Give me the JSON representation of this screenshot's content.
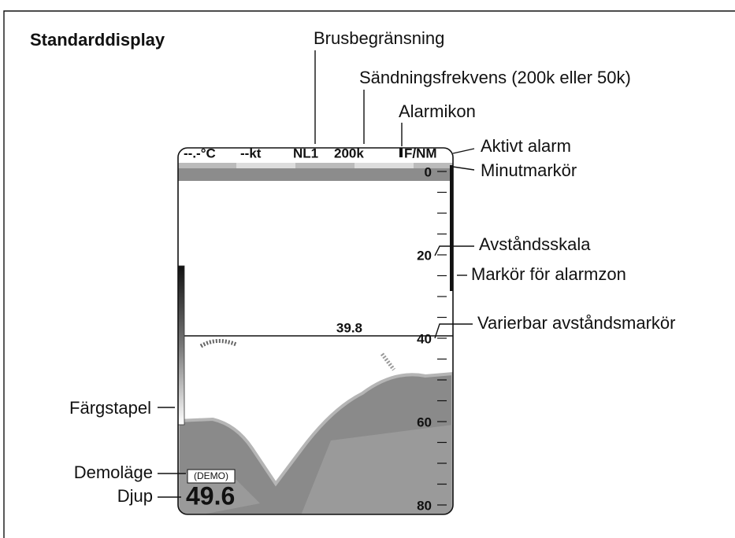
{
  "title": "Standarddisplay",
  "callouts": {
    "noise": "Brusbegränsning",
    "frequency": "Sändningsfrekvens (200k eller 50k)",
    "alarm_icon": "Alarmikon",
    "active_alarm": "Aktivt alarm",
    "minute_marker": "Minutmarkör",
    "range_scale": "Avståndsskala",
    "alarm_zone": "Markör för alarmzon",
    "vrm": "Varierbar avståndsmarkör",
    "color_bar": "Färgstapel",
    "demo_mode": "Demoläge",
    "depth": "Djup"
  },
  "screen": {
    "status": [
      "--.-°C",
      "--kt",
      "NL1",
      "200k",
      "F/NM"
    ],
    "scale": [
      "0",
      "20",
      "40",
      "60",
      "80"
    ],
    "range_marker": "39.8",
    "demo": "(DEMO)",
    "depth": "49.6"
  }
}
